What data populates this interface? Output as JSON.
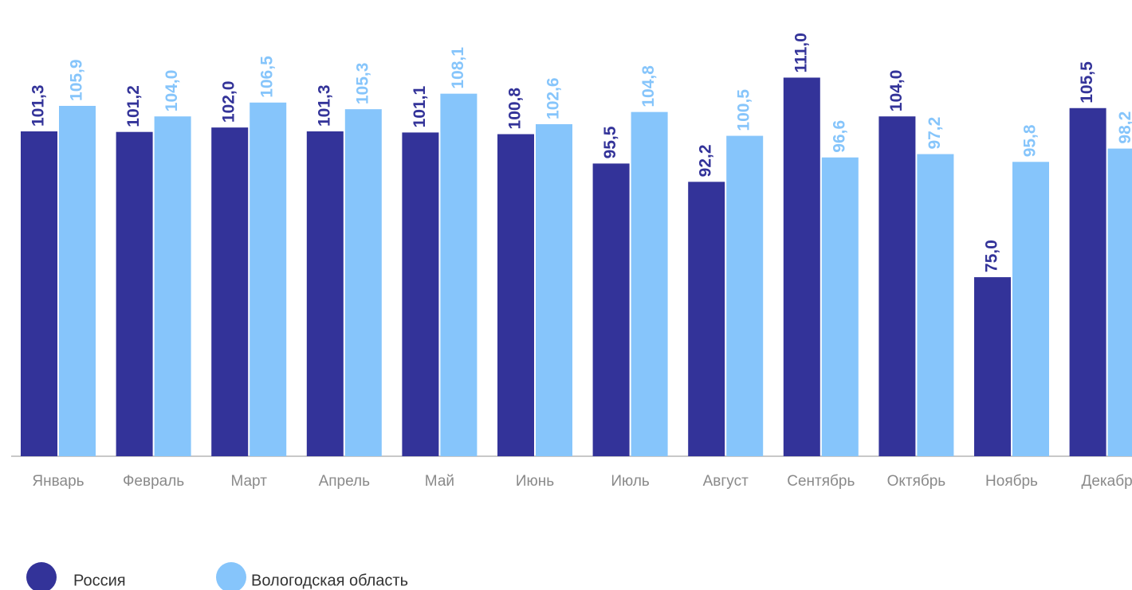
{
  "chart_data": {
    "type": "bar",
    "categories": [
      "Январь",
      "Февраль",
      "Март",
      "Апрель",
      "Май",
      "Июнь",
      "Июль",
      "Август",
      "Сентябрь",
      "Октябрь",
      "Ноябрь",
      "Декабр"
    ],
    "ylim": [
      42.7,
      125
    ],
    "series": [
      {
        "name": "Россия",
        "color": "#333399",
        "values": [
          101.3,
          101.2,
          102.0,
          101.3,
          101.1,
          100.8,
          95.5,
          92.2,
          111.0,
          104.0,
          75.0,
          105.5
        ],
        "value_labels": [
          "101,3",
          "101,2",
          "102,0",
          "101,3",
          "101,1",
          "100,8",
          "95,5",
          "92,2",
          "111,0",
          "104,0",
          "75,0",
          "105,5"
        ]
      },
      {
        "name": "Вологодская область",
        "color": "#86c5fb",
        "values": [
          105.9,
          104.0,
          106.5,
          105.3,
          108.1,
          102.6,
          104.8,
          100.5,
          96.6,
          97.2,
          95.8,
          98.2
        ],
        "value_labels": [
          "105,9",
          "104,0",
          "106,5",
          "105,3",
          "108,1",
          "102,6",
          "104,8",
          "100,5",
          "96,6",
          "97,2",
          "95,8",
          "98,2"
        ]
      }
    ]
  }
}
